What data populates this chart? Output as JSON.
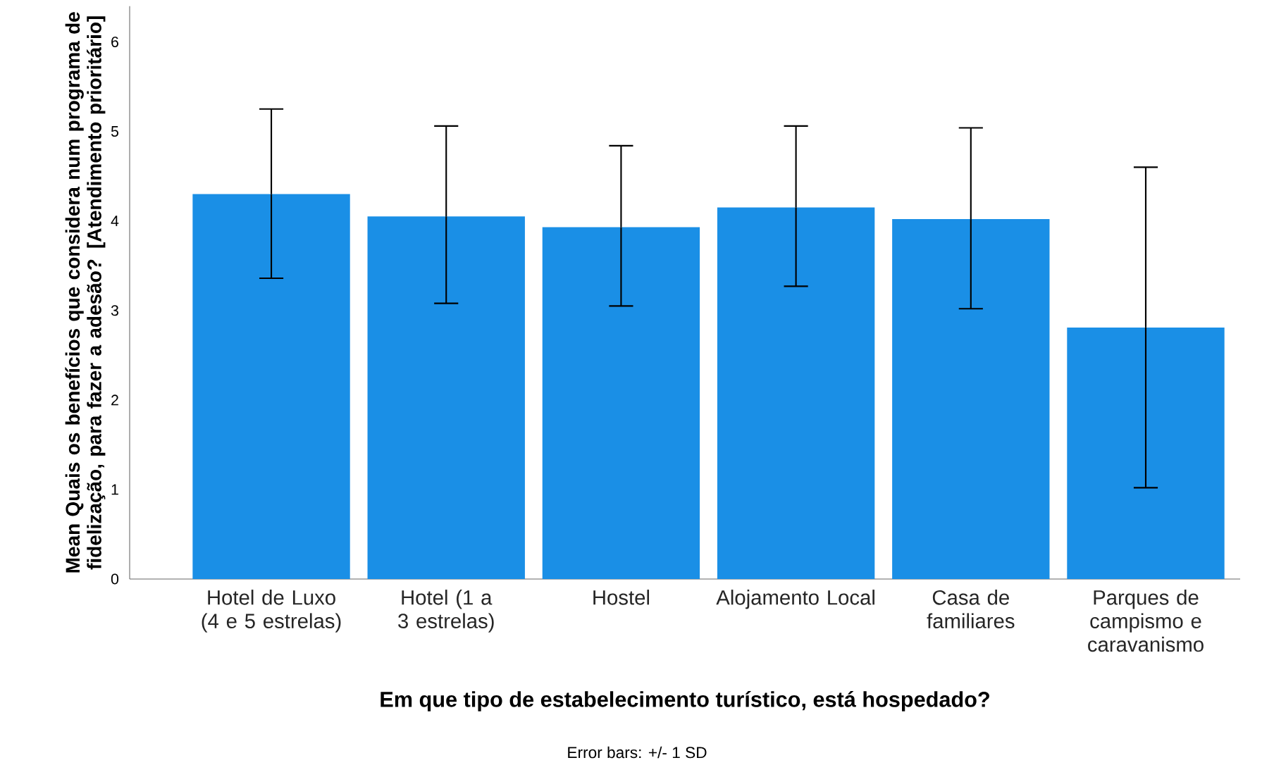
{
  "chart_data": {
    "type": "bar",
    "xlabel": "Em que tipo de estabelecimento turístico, está hospedado?",
    "ylabel": "Mean Quais os benefícios que considera num programa de fidelização, para fazer a adesão? [Atendimento prioritário]",
    "categories": [
      "Hotel de Luxo (4 e 5 estrelas)",
      "Hotel (1 a 3 estrelas)",
      "Hostel",
      "Alojamento Local",
      "Casa de familiares",
      "Parques de campismo e caravanismo"
    ],
    "values": [
      4.3,
      4.05,
      3.93,
      4.15,
      4.02,
      2.81
    ],
    "errors": [
      [
        3.36,
        5.25
      ],
      [
        3.08,
        5.06
      ],
      [
        3.05,
        4.84
      ],
      [
        3.27,
        5.06
      ],
      [
        3.02,
        5.04
      ],
      [
        1.02,
        4.6
      ]
    ],
    "color": "#1a8fe6",
    "ylim": [
      0,
      6.4
    ],
    "yticks": [
      0,
      1,
      2,
      3,
      4,
      5,
      6
    ],
    "annotations": [
      "Error bars: +/- 1 SD"
    ]
  }
}
